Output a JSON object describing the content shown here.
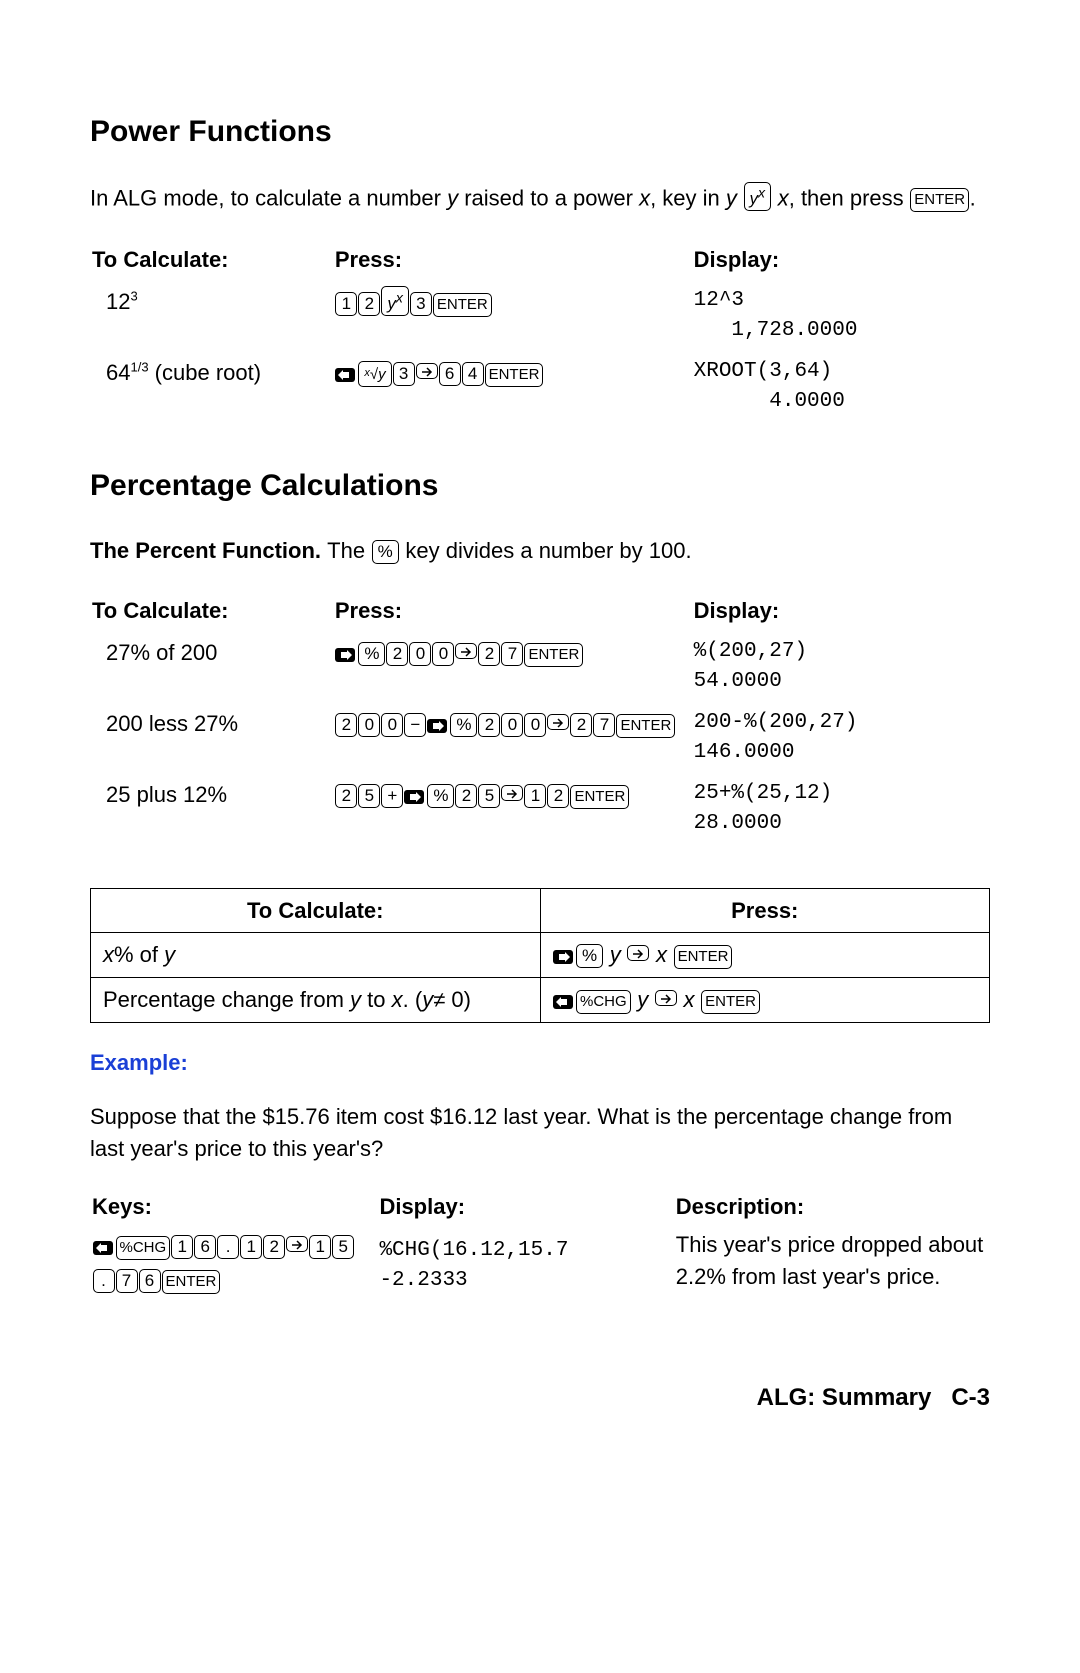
{
  "power": {
    "heading": "Power Functions",
    "intro_parts": {
      "p1": "In ALG mode, to calculate a number ",
      "y": "y",
      "p2": " raised to a power ",
      "x1": "x",
      "p3": ", key in ",
      "y2": "y",
      "sp": " ",
      "x2": "x",
      "p4": ", then press ",
      "end": "."
    },
    "headers": {
      "c1": "To Calculate:",
      "c2": "Press:",
      "c3": "Display:"
    },
    "rows": [
      {
        "calc": {
          "base": "12",
          "exp": "3"
        },
        "keys": [
          "1",
          "2",
          "yx",
          "3",
          "ENTER"
        ],
        "display": "12^3\n   1,728.0000"
      },
      {
        "calc": {
          "base": "64",
          "exp": "1/3",
          "suffix": " (cube root)"
        },
        "keys": [
          "shiftL",
          "xrooty",
          "3",
          ">",
          "6",
          "4",
          "ENTER"
        ],
        "display": "XROOT(3,64)\n      4.0000"
      }
    ]
  },
  "percent": {
    "heading": "Percentage Calculations",
    "intro": {
      "label": "The Percent Function. ",
      "t1": "The ",
      "t2": " key divides a number by 100."
    },
    "headers": {
      "c1": "To Calculate:",
      "c2": "Press:",
      "c3": "Display:"
    },
    "rows": [
      {
        "calc": "27% of 200",
        "keys": [
          "shiftR",
          "%",
          "2",
          "0",
          "0",
          ">",
          "2",
          "7",
          "ENTER"
        ],
        "display": "%(200,27)\n54.0000"
      },
      {
        "calc": "200 less 27%",
        "keys": [
          "2",
          "0",
          "0",
          "-",
          "shiftR",
          "%",
          "2",
          "0",
          "0",
          ">",
          "2",
          "7",
          "ENTER"
        ],
        "display": "200-%(200,27)\n146.0000"
      },
      {
        "calc": "25 plus 12%",
        "keys": [
          "2",
          "5",
          "+",
          "shiftR",
          "%",
          "2",
          "5",
          ">",
          "1",
          "2",
          "ENTER"
        ],
        "display": "25+%(25,12)\n28.0000"
      }
    ]
  },
  "boxed": {
    "headers": {
      "c1": "To Calculate:",
      "c2": "Press:"
    },
    "rows": [
      {
        "calc_parts": {
          "x": "x",
          "mid": "% of ",
          "y": "y"
        },
        "press_parts": [
          {
            "k": "shiftR"
          },
          {
            "k": "%"
          },
          {
            "t": " y "
          },
          {
            "k": ">"
          },
          {
            "t": " x "
          },
          {
            "k": "ENTER"
          }
        ]
      },
      {
        "calc_parts": {
          "pre": "Percentage change from ",
          "y": "y",
          "mid2": " to ",
          "x": "x",
          "suf": ". (",
          "y2": "y",
          "ne": "≠ 0)"
        },
        "press_parts": [
          {
            "k": "shiftL"
          },
          {
            "k": "%CHG"
          },
          {
            "t": " y "
          },
          {
            "k": ">"
          },
          {
            "t": " x "
          },
          {
            "k": "ENTER"
          }
        ]
      }
    ]
  },
  "example": {
    "label": "Example:",
    "text": "Suppose that the $15.76 item cost $16.12 last year. What is the percentage change from last year's price to this year's?",
    "headers": {
      "c1": "Keys:",
      "c2": "Display:",
      "c3": "Description:"
    },
    "row": {
      "keys": [
        "shiftL",
        "%CHG",
        "1",
        "6",
        ".",
        "1",
        "2",
        ">",
        "1",
        "5",
        ".",
        "7",
        "6",
        "ENTER"
      ],
      "display": "%CHG(16.12,15.7\n-2.2333",
      "desc": "This year's price dropped about 2.2% from last year's price."
    }
  },
  "footer": {
    "label": "ALG: Summary",
    "page": "C-3"
  }
}
